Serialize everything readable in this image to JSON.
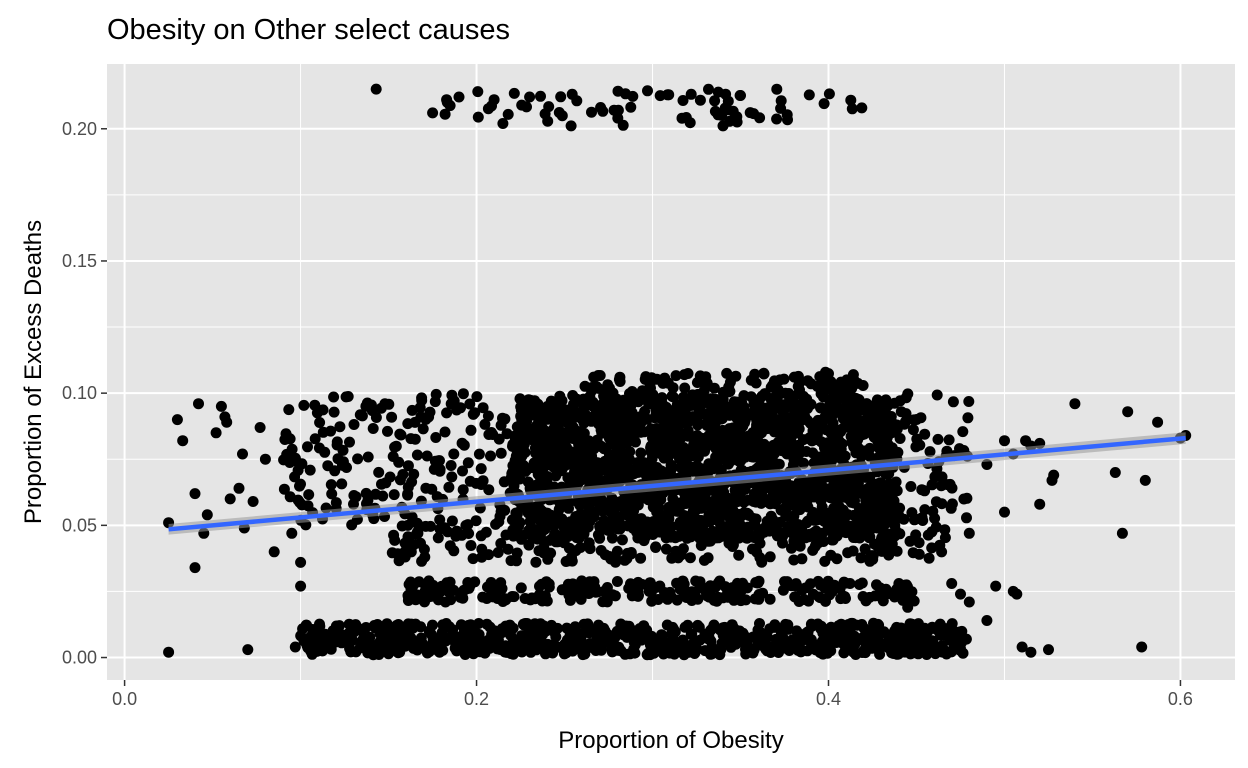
{
  "chart_data": {
    "type": "scatter",
    "title": "Obesity on Other select causes",
    "xlabel": "Proportion of Obesity",
    "ylabel": "Proportion of Excess Deaths",
    "xlim": [
      -0.01,
      0.631
    ],
    "ylim": [
      -0.0085,
      0.2245
    ],
    "x_ticks": [
      0.0,
      0.2,
      0.4,
      0.6
    ],
    "x_tick_labels": [
      "0.0",
      "0.2",
      "0.4",
      "0.6"
    ],
    "y_ticks": [
      0.0,
      0.05,
      0.1,
      0.15,
      0.2
    ],
    "y_tick_labels": [
      "0.00",
      "0.05",
      "0.10",
      "0.15",
      "0.20"
    ],
    "grid": true,
    "background": "#e5e5e5",
    "grid_color": "#ffffff",
    "point_color": "#000000",
    "line_color": "#3366ff",
    "band_color": "#999999",
    "regression": {
      "x": [
        0.025,
        0.603
      ],
      "y": [
        0.0485,
        0.083
      ],
      "se_band": {
        "lower": [
          0.0465,
          0.0808
        ],
        "upper": [
          0.0505,
          0.0852
        ]
      }
    },
    "point_clusters": [
      {
        "x_range": [
          0.18,
          0.42
        ],
        "y_range": [
          0.201,
          0.215
        ],
        "count": 75
      },
      {
        "x_range": [
          0.22,
          0.44
        ],
        "y_range": [
          0.045,
          0.098
        ],
        "count": 1600
      },
      {
        "x_range": [
          0.09,
          0.48
        ],
        "y_range": [
          0.05,
          0.1
        ],
        "count": 550
      },
      {
        "x_range": [
          0.26,
          0.42
        ],
        "y_range": [
          0.098,
          0.108
        ],
        "count": 120
      },
      {
        "x_range": [
          0.15,
          0.47
        ],
        "y_range": [
          0.036,
          0.05
        ],
        "count": 220
      },
      {
        "x_range": [
          0.16,
          0.45
        ],
        "y_range": [
          0.021,
          0.029
        ],
        "count": 260
      },
      {
        "x_range": [
          0.1,
          0.48
        ],
        "y_range": [
          0.001,
          0.013
        ],
        "count": 750
      }
    ],
    "points": [
      [
        0.025,
        0.002
      ],
      [
        0.025,
        0.051
      ],
      [
        0.03,
        0.09
      ],
      [
        0.033,
        0.082
      ],
      [
        0.04,
        0.062
      ],
      [
        0.04,
        0.034
      ],
      [
        0.042,
        0.096
      ],
      [
        0.045,
        0.047
      ],
      [
        0.047,
        0.054
      ],
      [
        0.052,
        0.085
      ],
      [
        0.055,
        0.095
      ],
      [
        0.057,
        0.091
      ],
      [
        0.058,
        0.089
      ],
      [
        0.06,
        0.06
      ],
      [
        0.065,
        0.064
      ],
      [
        0.067,
        0.077
      ],
      [
        0.068,
        0.049
      ],
      [
        0.07,
        0.003
      ],
      [
        0.073,
        0.059
      ],
      [
        0.077,
        0.087
      ],
      [
        0.08,
        0.075
      ],
      [
        0.085,
        0.04
      ],
      [
        0.095,
        0.047
      ],
      [
        0.097,
        0.004
      ],
      [
        0.1,
        0.027
      ],
      [
        0.1,
        0.036
      ],
      [
        0.143,
        0.215
      ],
      [
        0.175,
        0.206
      ],
      [
        0.183,
        0.211
      ],
      [
        0.19,
        0.212
      ],
      [
        0.21,
        0.211
      ],
      [
        0.215,
        0.202
      ],
      [
        0.44,
        0.028
      ],
      [
        0.445,
        0.019
      ],
      [
        0.46,
        0.004
      ],
      [
        0.47,
        0.028
      ],
      [
        0.475,
        0.024
      ],
      [
        0.48,
        0.021
      ],
      [
        0.48,
        0.047
      ],
      [
        0.49,
        0.014
      ],
      [
        0.49,
        0.073
      ],
      [
        0.495,
        0.027
      ],
      [
        0.5,
        0.055
      ],
      [
        0.505,
        0.077
      ],
      [
        0.505,
        0.025
      ],
      [
        0.507,
        0.024
      ],
      [
        0.51,
        0.004
      ],
      [
        0.515,
        0.002
      ],
      [
        0.52,
        0.058
      ],
      [
        0.525,
        0.003
      ],
      [
        0.527,
        0.067
      ],
      [
        0.528,
        0.069
      ],
      [
        0.54,
        0.096
      ],
      [
        0.563,
        0.07
      ],
      [
        0.567,
        0.047
      ],
      [
        0.57,
        0.093
      ],
      [
        0.578,
        0.004
      ],
      [
        0.58,
        0.067
      ],
      [
        0.587,
        0.089
      ],
      [
        0.6,
        0.083
      ],
      [
        0.603,
        0.084
      ],
      [
        0.515,
        0.08
      ],
      [
        0.52,
        0.081
      ],
      [
        0.5,
        0.082
      ],
      [
        0.512,
        0.082
      ]
    ]
  }
}
